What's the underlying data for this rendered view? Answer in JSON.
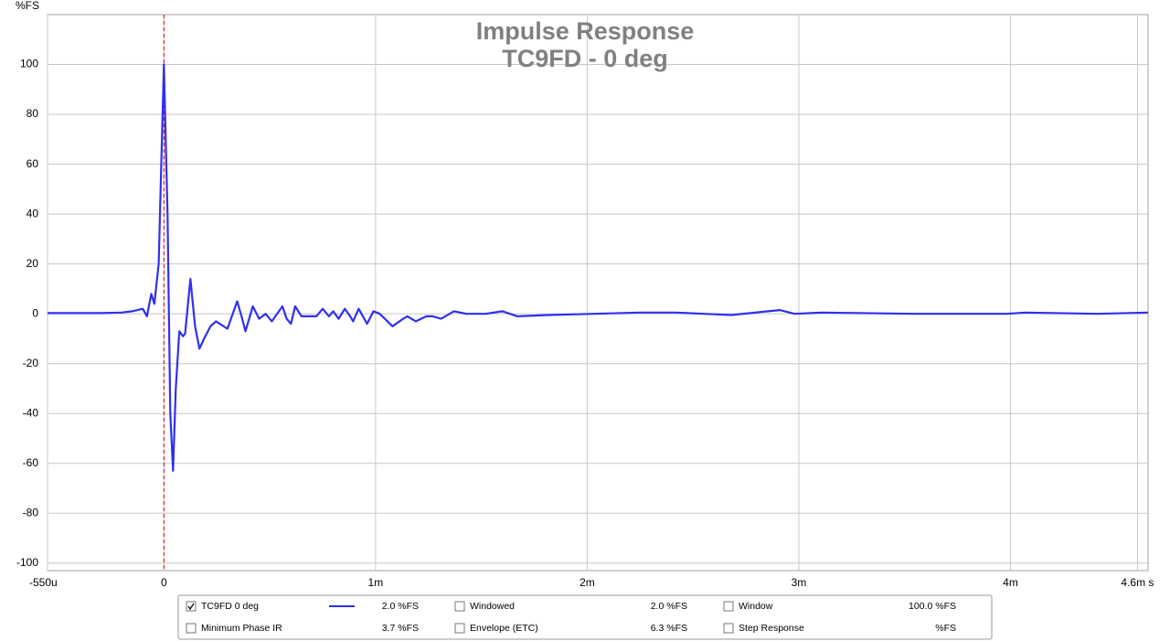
{
  "chart_data": {
    "type": "line",
    "title": "Impulse Response",
    "subtitle": "TC9FD - 0 deg",
    "y_label": "%FS",
    "xlim": [
      -0.55,
      4.65
    ],
    "ylim": [
      -103,
      120
    ],
    "xticks": [
      {
        "value": -0.55,
        "label": "-550u"
      },
      0,
      {
        "value": 1,
        "label": "1m"
      },
      {
        "value": 2,
        "label": "2m"
      },
      {
        "value": 3,
        "label": "3m"
      },
      {
        "value": 4,
        "label": "4m"
      },
      {
        "value": 4.6,
        "label": "4.6m s"
      }
    ],
    "yticks": [
      100,
      80,
      60,
      40,
      20,
      0,
      -20,
      -40,
      -60,
      -80,
      -100
    ],
    "grid": true,
    "marker_x": 0,
    "marker_color": "#e00000",
    "series": [
      {
        "name": "TC9FD 0 deg",
        "color": "#3030ee",
        "reading": "2.0 %FS",
        "checked": true,
        "x": [
          -0.55,
          -0.3,
          -0.2,
          -0.15,
          -0.1,
          -0.08,
          -0.06,
          -0.045,
          -0.025,
          0,
          0.017,
          0.03,
          0.043,
          0.056,
          0.073,
          0.09,
          0.1,
          0.125,
          0.147,
          0.168,
          0.19,
          0.22,
          0.246,
          0.3,
          0.346,
          0.37,
          0.385,
          0.42,
          0.45,
          0.48,
          0.51,
          0.56,
          0.58,
          0.6,
          0.62,
          0.65,
          0.72,
          0.75,
          0.78,
          0.8,
          0.825,
          0.855,
          0.88,
          0.894,
          0.92,
          0.96,
          0.99,
          1.02,
          1.08,
          1.13,
          1.15,
          1.19,
          1.24,
          1.27,
          1.31,
          1.37,
          1.43,
          1.52,
          1.6,
          1.67,
          1.82,
          2.03,
          2.25,
          2.42,
          2.68,
          2.91,
          2.98,
          3.11,
          3.55,
          3.98,
          4.07,
          4.41,
          4.65
        ],
        "values": [
          0.3,
          0.3,
          0.5,
          1,
          2,
          -1,
          8,
          4,
          20,
          100,
          40,
          -40,
          -63,
          -30,
          -7,
          -9,
          -8,
          14,
          -5,
          -14,
          -10,
          -5,
          -3,
          -6,
          5,
          -2,
          -7,
          3,
          -2,
          0,
          -3,
          3,
          -2,
          -4,
          3,
          -1,
          -1,
          2,
          -1,
          1,
          -2,
          2,
          -1,
          -3,
          2,
          -4,
          1,
          0,
          -5,
          -2,
          -1,
          -3,
          -1,
          -1,
          -2,
          1,
          0,
          0,
          1,
          -1,
          -0.5,
          0,
          0.5,
          0.5,
          -0.5,
          1.5,
          0,
          0.5,
          0,
          0,
          0.5,
          0,
          0.5
        ]
      }
    ],
    "other_traces": [
      {
        "label": "Minimum Phase IR",
        "reading": "3.7 %FS",
        "checked": false,
        "enabled": false
      },
      {
        "label": "Windowed",
        "reading": "2.0 %FS",
        "checked": false,
        "enabled": true
      },
      {
        "label": "Envelope (ETC)",
        "reading": "6.3 %FS",
        "checked": false,
        "enabled": true
      },
      {
        "label": "Window",
        "reading": "100.0 %FS",
        "checked": false,
        "enabled": true
      },
      {
        "label": "Step Response",
        "reading": "%FS",
        "checked": false,
        "enabled": true
      }
    ]
  }
}
